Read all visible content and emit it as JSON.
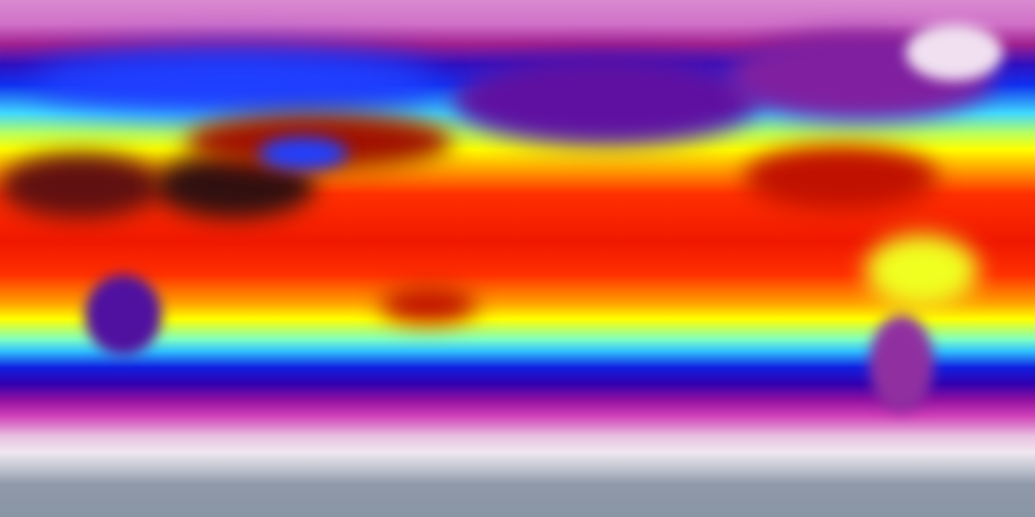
{
  "colormap": [
    "#f0e8f0",
    "#d070c8",
    "#9010a0",
    "#1030f0",
    "#40d8ff",
    "#ffff00",
    "#ffa000",
    "#ff3000",
    "#200808"
  ],
  "land_colors": {
    "hot_desert": "#2a0a0a",
    "antarctica": "#8a95a5",
    "greenland": "#f0e0f0"
  }
}
